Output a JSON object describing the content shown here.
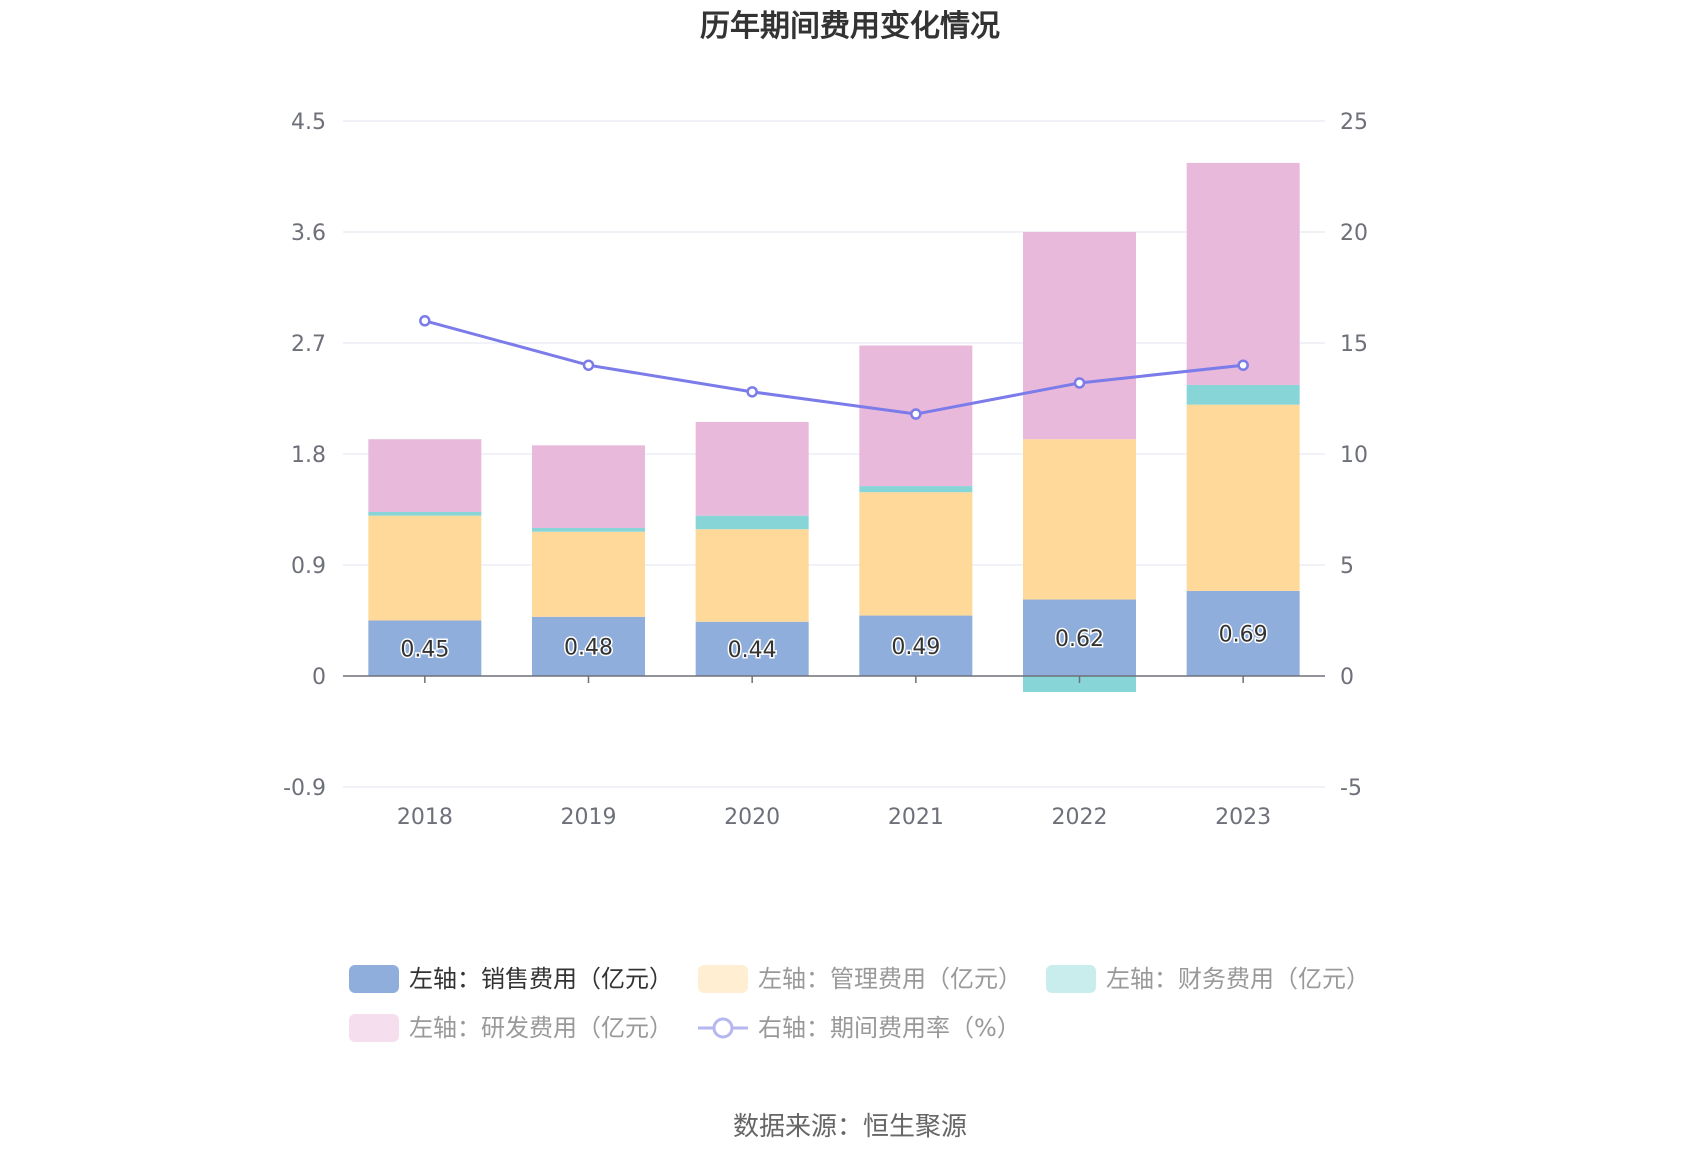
{
  "chart_data": {
    "type": "bar",
    "title": "历年期间费用变化情况",
    "categories": [
      "2018",
      "2019",
      "2020",
      "2021",
      "2022",
      "2023"
    ],
    "left_axis": {
      "min": -0.9,
      "max": 4.5,
      "ticks": [
        "4.5",
        "3.6",
        "2.7",
        "1.8",
        "0.9",
        "0",
        "-0.9"
      ]
    },
    "right_axis": {
      "min": -5,
      "max": 25,
      "ticks": [
        "25",
        "20",
        "15",
        "10",
        "5",
        "0",
        "-5"
      ]
    },
    "series": [
      {
        "name": "左轴：销售费用（亿元）",
        "kind": "bar",
        "axis": "left",
        "color": "#8FAEDC",
        "values": [
          0.45,
          0.48,
          0.44,
          0.49,
          0.62,
          0.69
        ],
        "labels": [
          "0.45",
          "0.48",
          "0.44",
          "0.49",
          "0.62",
          "0.69"
        ]
      },
      {
        "name": "左轴：管理费用（亿元）",
        "kind": "bar",
        "axis": "left",
        "color": "#FFD99A",
        "values": [
          0.85,
          0.69,
          0.75,
          1.0,
          1.3,
          1.51
        ]
      },
      {
        "name": "左轴：财务费用（亿元）",
        "kind": "bar",
        "axis": "left",
        "color": "#88D5D8",
        "values": [
          0.03,
          0.03,
          0.11,
          0.05,
          -0.13,
          0.16
        ]
      },
      {
        "name": "左轴：研发费用（亿元）",
        "kind": "bar",
        "axis": "left",
        "color": "#E8B9DA",
        "values": [
          0.59,
          0.67,
          0.76,
          1.14,
          1.68,
          1.8
        ]
      },
      {
        "name": "右轴：期间费用率（%）",
        "kind": "line",
        "axis": "right",
        "color": "#7B7BEA",
        "values": [
          16.0,
          14.0,
          12.8,
          11.8,
          13.2,
          14.0
        ]
      }
    ],
    "grid": true,
    "legend_position": "bottom"
  },
  "source": "数据来源：恒生聚源"
}
